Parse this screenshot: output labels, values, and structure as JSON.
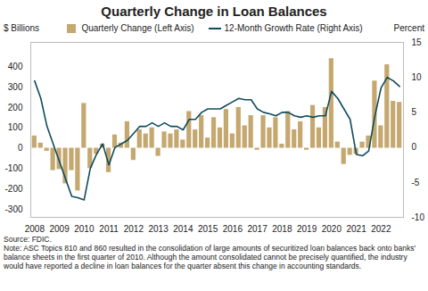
{
  "chart_data": {
    "type": "bar",
    "title": "Quarterly Change in Loan Balances",
    "ylabel": "$ Billions",
    "y2label": "Percent",
    "source": "Source: FDIC.",
    "note": "Note: ASC Topics 810 and 860 resulted in the consolidation of large amounts of securitized loan balances back onto banks' balance sheets in the first quarter of 2010. Although the amount consolidated cannot be precisely quantified, the industry would have reported a decline in loan balances for the quarter absent this change in accounting standards.",
    "legend": "top",
    "categories": [
      "2008",
      null,
      null,
      null,
      "2009",
      null,
      null,
      null,
      "2010",
      null,
      null,
      null,
      "2011",
      null,
      null,
      null,
      "2012",
      null,
      null,
      null,
      "2013",
      null,
      null,
      null,
      "2014",
      null,
      null,
      null,
      "2015",
      null,
      null,
      null,
      "2016",
      null,
      null,
      null,
      "2017",
      null,
      null,
      null,
      "2018",
      null,
      null,
      null,
      "2019",
      null,
      null,
      null,
      "2020",
      null,
      null,
      null,
      "2021",
      null,
      null,
      null,
      "2022",
      null,
      null,
      null
    ],
    "series": [
      {
        "name": "Quarterly Change (Left Axis)",
        "type": "bar",
        "color": "#C4A870",
        "values": [
          60,
          25,
          -15,
          -110,
          -105,
          -175,
          -110,
          -210,
          220,
          -100,
          -30,
          20,
          -120,
          65,
          25,
          130,
          -60,
          90,
          70,
          100,
          -40,
          80,
          70,
          90,
          40,
          180,
          90,
          160,
          50,
          150,
          100,
          190,
          70,
          200,
          110,
          160,
          -10,
          160,
          100,
          150,
          20,
          180,
          90,
          130,
          -10,
          210,
          100,
          200,
          440,
          30,
          -80,
          -35,
          -30,
          30,
          60,
          330,
          110,
          410,
          230,
          225
        ]
      },
      {
        "name": "12-Month Growth Rate (Right Axis)",
        "type": "line",
        "axis": "y2",
        "color": "#0F4C5C",
        "values": [
          9.5,
          7,
          3,
          0.5,
          -2,
          -4.5,
          -7,
          -7.2,
          -7.5,
          -3,
          -1,
          0.5,
          -2.5,
          0,
          0.5,
          1,
          2,
          3,
          3,
          3.5,
          3,
          3.5,
          3,
          3,
          2.5,
          4,
          4,
          5,
          5.5,
          5.5,
          5.5,
          6,
          6.5,
          7,
          6.8,
          6.8,
          5.5,
          5,
          4.8,
          4.5,
          5,
          5,
          4.5,
          4.3,
          4.5,
          4.3,
          4.5,
          4.5,
          8,
          7,
          5.5,
          4,
          -1,
          -1.2,
          -0.5,
          4.5,
          8.5,
          10,
          9.5,
          8.7
        ]
      }
    ],
    "ylim": [
      -340,
      520
    ],
    "yticks": [
      -300,
      -200,
      -100,
      0,
      100,
      200,
      300,
      400
    ],
    "y2lim": [
      -10,
      15
    ],
    "y2ticks": [
      -10,
      -5,
      0,
      5,
      10,
      15
    ]
  }
}
